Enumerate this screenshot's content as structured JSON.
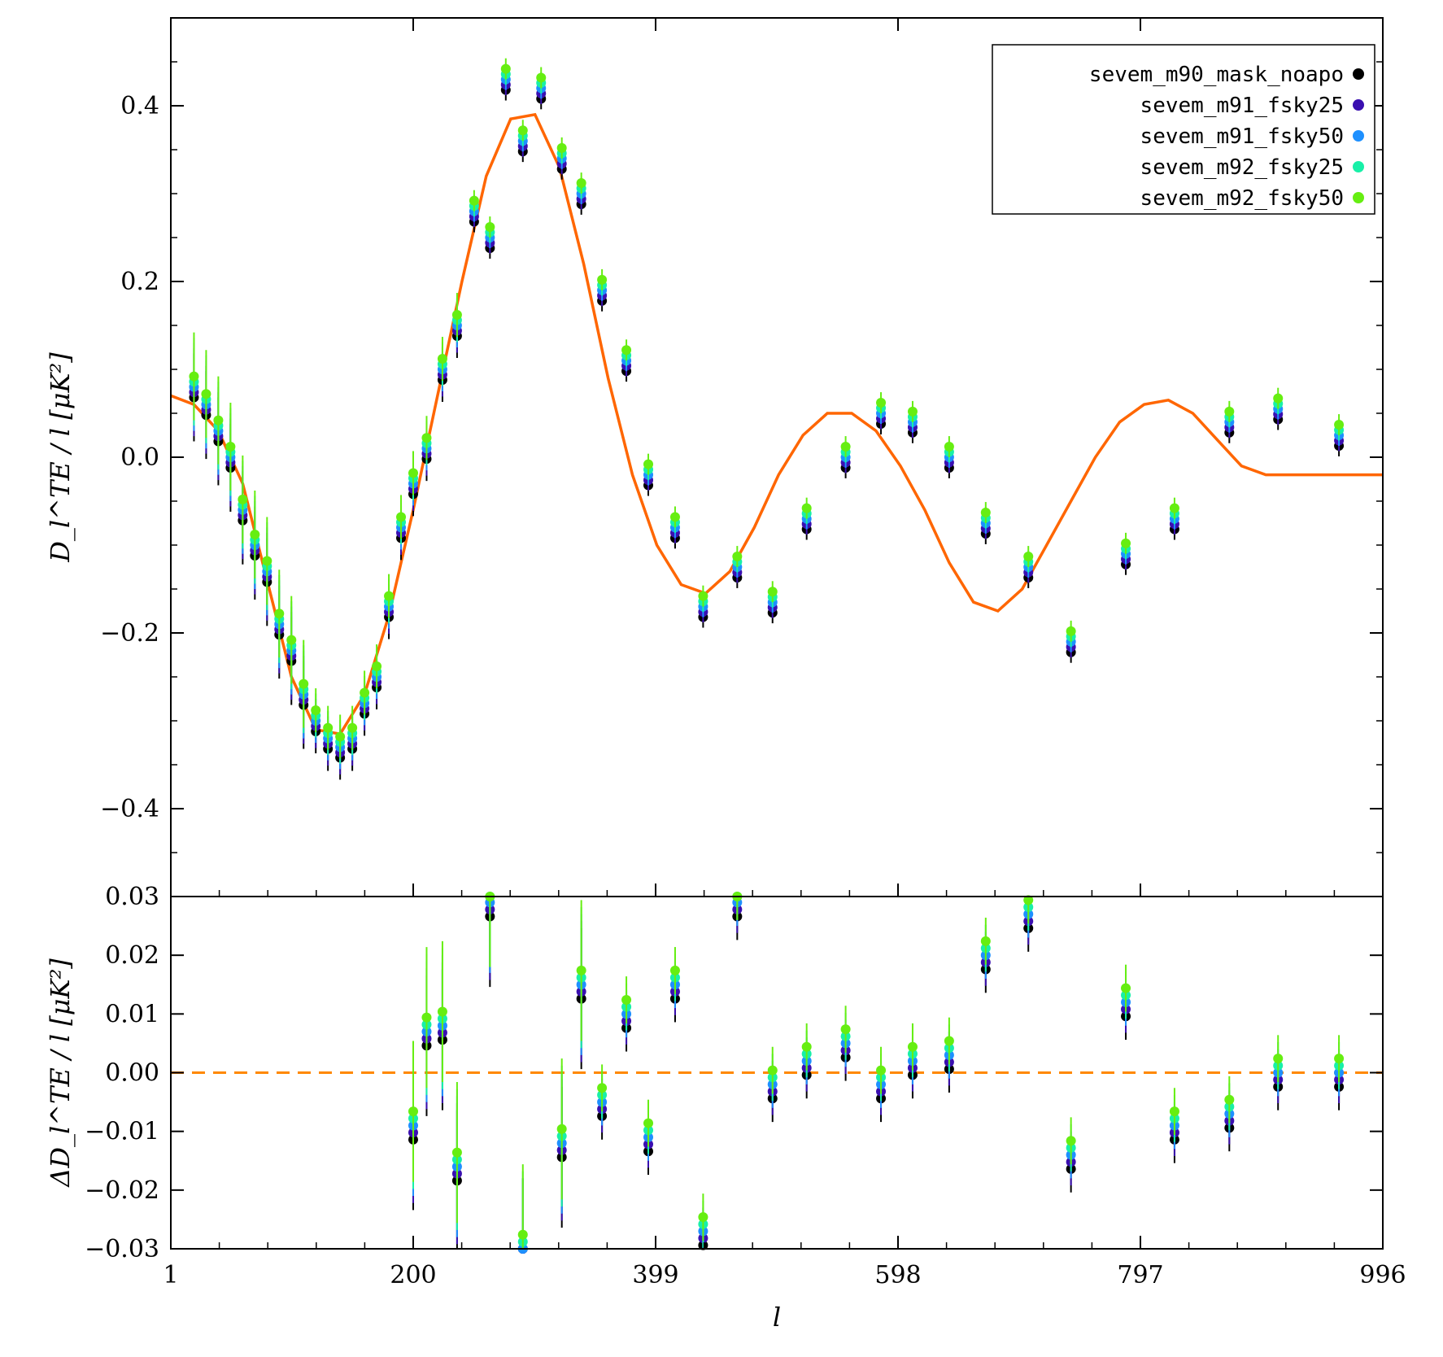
{
  "chart_data": [
    {
      "type": "scatter",
      "panel": "top",
      "xlabel": "l",
      "ylabel": "D_l^TE / l [μK²]",
      "xlim": [
        1,
        996
      ],
      "ylim": [
        -0.5,
        0.5
      ],
      "xticks": [
        "1",
        "200",
        "399",
        "598",
        "797",
        "996"
      ],
      "yticks": [
        {
          "value": 0.4,
          "label": "0.4"
        },
        {
          "value": 0.2,
          "label": "0.2"
        },
        {
          "value": 0.0,
          "label": "0.0"
        },
        {
          "value": -0.2,
          "label": "−0.2"
        },
        {
          "value": -0.4,
          "label": "−0.4"
        }
      ],
      "legend_position": "top-right",
      "series": [
        {
          "name": "sevem_m90_mask_noapo",
          "color": "#000000"
        },
        {
          "name": "sevem_m91_fsky25",
          "color": "#3a0fb0"
        },
        {
          "name": "sevem_m91_fsky50",
          "color": "#1e90ff"
        },
        {
          "name": "sevem_m92_fsky25",
          "color": "#18f0a8"
        },
        {
          "name": "sevem_m92_fsky50",
          "color": "#66ee11"
        }
      ],
      "model": {
        "color": "#ff6600",
        "x": [
          1,
          20,
          40,
          60,
          80,
          100,
          120,
          140,
          160,
          180,
          200,
          220,
          240,
          260,
          280,
          300,
          320,
          340,
          360,
          380,
          400,
          420,
          440,
          460,
          480,
          500,
          520,
          540,
          560,
          580,
          600,
          620,
          640,
          660,
          680,
          700,
          720,
          740,
          760,
          780,
          800,
          820,
          840,
          860,
          880,
          900,
          920,
          940,
          960,
          980,
          996
        ],
        "y": [
          0.07,
          0.06,
          0.03,
          -0.03,
          -0.14,
          -0.25,
          -0.31,
          -0.315,
          -0.27,
          -0.18,
          -0.06,
          0.07,
          0.2,
          0.32,
          0.385,
          0.39,
          0.33,
          0.22,
          0.09,
          -0.02,
          -0.1,
          -0.145,
          -0.155,
          -0.13,
          -0.08,
          -0.02,
          0.025,
          0.05,
          0.05,
          0.03,
          -0.01,
          -0.06,
          -0.12,
          -0.165,
          -0.175,
          -0.15,
          -0.1,
          -0.05,
          0.0,
          0.04,
          0.06,
          0.065,
          0.05,
          0.02,
          -0.01,
          -0.02,
          -0.02,
          -0.02,
          -0.02,
          -0.02,
          -0.02
        ]
      },
      "points": {
        "x": [
          20,
          30,
          40,
          50,
          60,
          70,
          80,
          90,
          100,
          110,
          120,
          130,
          140,
          150,
          160,
          170,
          180,
          190,
          200,
          211,
          224,
          236,
          250,
          263,
          276,
          290,
          305,
          322,
          338,
          355,
          375,
          393,
          415,
          438,
          466,
          495,
          523,
          555,
          584,
          610,
          640,
          670,
          705,
          740,
          785,
          825,
          870,
          910,
          960
        ],
        "y": [
          0.08,
          0.06,
          0.03,
          0.0,
          -0.06,
          -0.1,
          -0.13,
          -0.19,
          -0.22,
          -0.27,
          -0.3,
          -0.32,
          -0.33,
          -0.32,
          -0.28,
          -0.25,
          -0.17,
          -0.08,
          -0.03,
          0.01,
          0.1,
          0.15,
          0.28,
          0.25,
          0.43,
          0.36,
          0.42,
          0.34,
          0.3,
          0.19,
          0.11,
          -0.02,
          -0.08,
          -0.17,
          -0.125,
          -0.165,
          -0.07,
          0.0,
          0.05,
          0.04,
          0.0,
          -0.075,
          -0.125,
          -0.21,
          -0.11,
          -0.07,
          0.04,
          0.055,
          0.025
        ]
      }
    },
    {
      "type": "scatter",
      "panel": "bottom",
      "xlabel": "l",
      "ylabel": "ΔD_l^TE / l [μK²]",
      "xlim": [
        1,
        996
      ],
      "ylim": [
        -0.03,
        0.03
      ],
      "xticks": [
        "1",
        "200",
        "399",
        "598",
        "797",
        "996"
      ],
      "yticks": [
        {
          "value": 0.03,
          "label": "0.03"
        },
        {
          "value": 0.02,
          "label": "0.02"
        },
        {
          "value": 0.01,
          "label": "0.01"
        },
        {
          "value": 0.0,
          "label": "0.00"
        },
        {
          "value": -0.01,
          "label": "−0.01"
        },
        {
          "value": -0.02,
          "label": "−0.02"
        },
        {
          "value": -0.03,
          "label": "−0.03"
        }
      ],
      "reference_line": {
        "value": 0.0,
        "color": "#ff8800",
        "style": "dashed"
      },
      "points": {
        "x": [
          200,
          211,
          224,
          236,
          263,
          290,
          322,
          338,
          355,
          375,
          393,
          415,
          438,
          466,
          495,
          523,
          555,
          584,
          610,
          640,
          670,
          705,
          740,
          785,
          825,
          870,
          910,
          960
        ],
        "y": [
          -0.009,
          0.007,
          0.008,
          -0.016,
          0.029,
          -0.03,
          -0.012,
          0.015,
          -0.005,
          0.01,
          -0.011,
          0.015,
          -0.027,
          0.029,
          -0.002,
          0.002,
          0.005,
          -0.002,
          0.002,
          0.003,
          0.02,
          0.027,
          -0.014,
          0.012,
          -0.009,
          -0.007,
          0.0,
          0.0
        ]
      }
    }
  ]
}
